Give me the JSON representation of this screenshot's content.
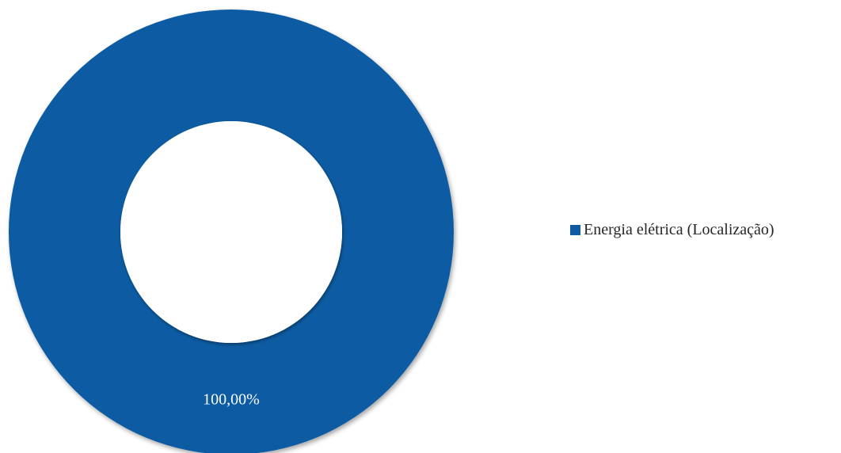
{
  "chart_data": {
    "type": "pie",
    "variant": "donut",
    "title": "",
    "categories": [
      "Energia elétrica (Localização)"
    ],
    "values": [
      100.0
    ],
    "data_labels": [
      "100,00%"
    ],
    "colors": [
      "#0E5BA3"
    ],
    "legend_position": "right"
  }
}
